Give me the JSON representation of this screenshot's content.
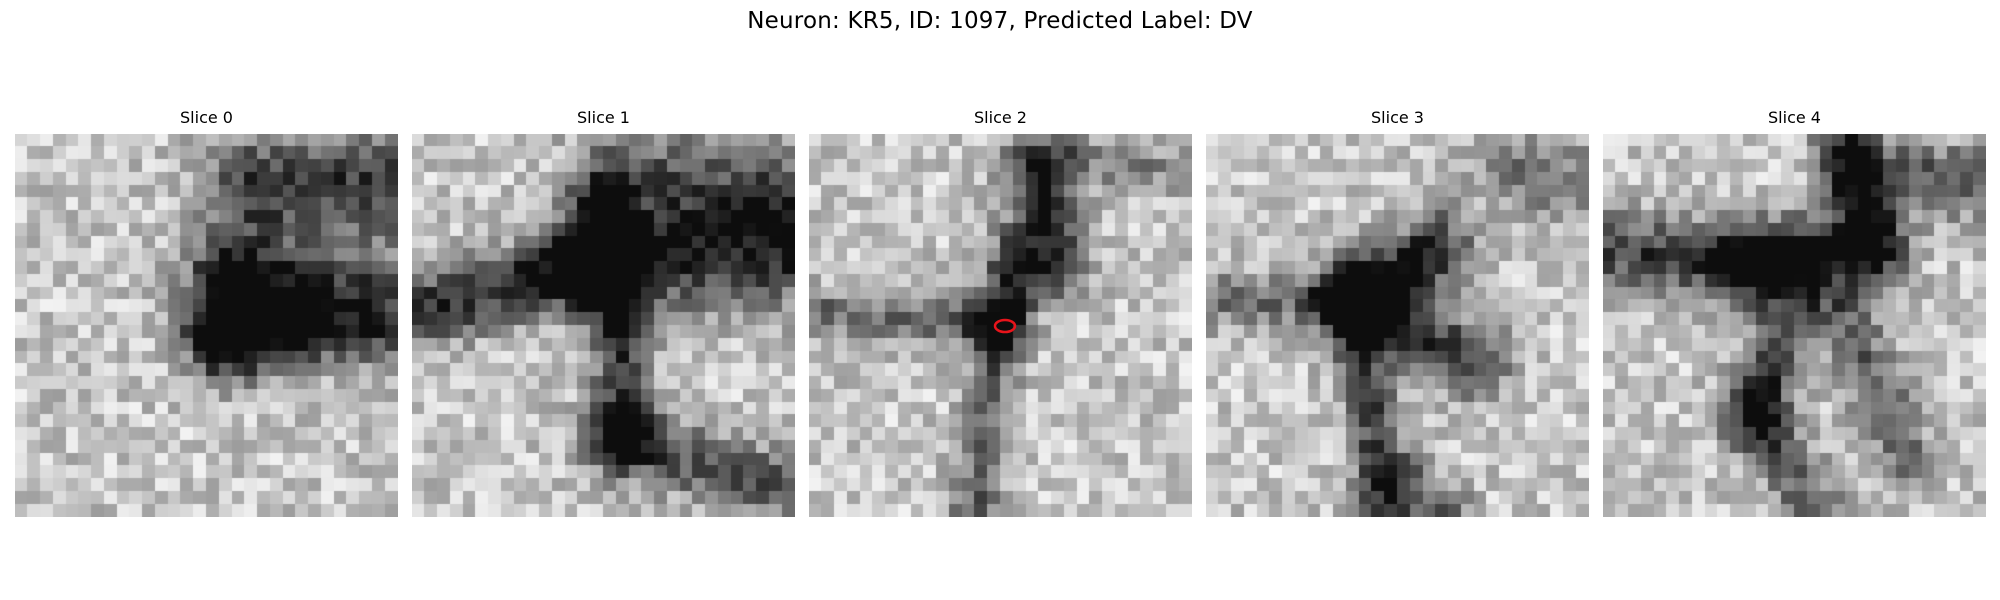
{
  "title": "Neuron: KR5, ID: 1097, Predicted Label: DV",
  "grid_size": 30,
  "marker_color": "#e8141b",
  "slices": [
    {
      "label": "Slice 0"
    },
    {
      "label": "Slice 1"
    },
    {
      "label": "Slice 2",
      "has_marker": true
    },
    {
      "label": "Slice 3"
    },
    {
      "label": "Slice 4"
    }
  ]
}
